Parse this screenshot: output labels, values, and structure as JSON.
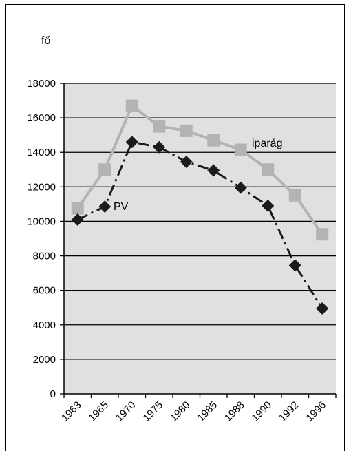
{
  "chart_data": {
    "type": "line",
    "title": "",
    "xlabel": "",
    "ylabel": "fő",
    "ylim": [
      0,
      18000
    ],
    "y_ticks": [
      0,
      2000,
      4000,
      6000,
      8000,
      10000,
      12000,
      14000,
      16000,
      18000
    ],
    "grid": true,
    "categories": [
      "1963",
      "1965",
      "1970",
      "1975",
      "1980",
      "1985",
      "1988",
      "1990",
      "1992",
      "1996"
    ],
    "series": [
      {
        "name": "iparág",
        "marker": "square",
        "line_style": "solid",
        "color": "#b3b3b3",
        "values": [
          10750,
          13000,
          16700,
          15500,
          15250,
          14700,
          14150,
          13000,
          11500,
          9250
        ]
      },
      {
        "name": "PV",
        "marker": "diamond",
        "line_style": "dash-dot",
        "color": "#1a1a1a",
        "values": [
          10100,
          10850,
          14600,
          14300,
          13450,
          12950,
          11950,
          10900,
          7450,
          4950
        ]
      }
    ],
    "plot_background": "#e0e0e0",
    "grid_color": "#000000"
  }
}
